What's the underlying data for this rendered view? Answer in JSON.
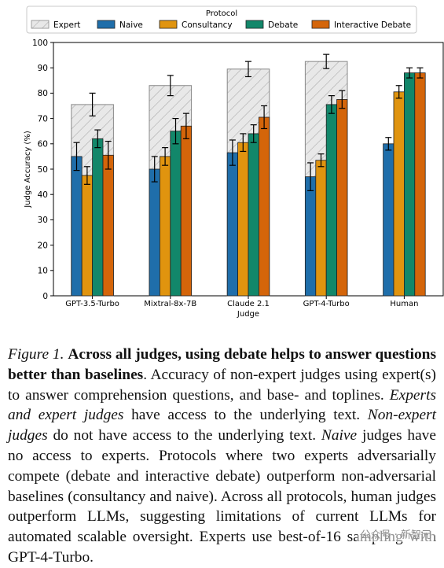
{
  "chart_data": {
    "type": "bar",
    "legend_title": "Protocol",
    "legend_position": "top",
    "ylabel": "Judge Accuracy (%)",
    "xlabel": "Judge",
    "ylim": [
      0,
      100
    ],
    "yticks": [
      0,
      10,
      20,
      30,
      40,
      50,
      60,
      70,
      80,
      90,
      100
    ],
    "grid": false,
    "categories": [
      "GPT-3.5-Turbo",
      "Mixtral-8x-7B",
      "Claude 2.1",
      "GPT-4-Turbo",
      "Human"
    ],
    "expert": {
      "name": "Expert",
      "values": [
        75.5,
        83.0,
        89.5,
        92.5,
        null
      ],
      "errors": [
        4.5,
        4.0,
        3.0,
        2.8,
        null
      ],
      "color": "#e8e8e8",
      "hatch": "diagonal"
    },
    "series": [
      {
        "name": "Naive",
        "color": "#1f6eaa",
        "values": [
          55.0,
          50.0,
          56.5,
          47.0,
          60.0
        ],
        "errors": [
          5.5,
          5.0,
          5.0,
          5.5,
          2.5
        ]
      },
      {
        "name": "Consultancy",
        "color": "#e0940f",
        "values": [
          47.5,
          55.0,
          60.5,
          53.5,
          80.5
        ],
        "errors": [
          3.5,
          3.5,
          3.5,
          2.5,
          2.5
        ]
      },
      {
        "name": "Debate",
        "color": "#12876a",
        "values": [
          62.0,
          65.0,
          64.0,
          75.5,
          88.0
        ],
        "errors": [
          3.5,
          5.0,
          3.5,
          3.5,
          2.0
        ]
      },
      {
        "name": "Interactive Debate",
        "color": "#d4650a",
        "values": [
          55.5,
          67.0,
          70.5,
          77.5,
          88.0
        ],
        "errors": [
          5.5,
          5.0,
          4.5,
          3.5,
          2.0
        ]
      }
    ]
  },
  "caption": {
    "label": "Figure 1.",
    "bold_title": "Across all judges, using debate helps to answer questions better than baselines",
    "s1": ". Accuracy of non-expert judges using expert(s) to answer comprehension questions, and base- and toplines. ",
    "it1": "Experts and expert judges",
    "s2": " have access to the underlying text. ",
    "it2": "Non-expert judges",
    "s3": " do not have access to the underlying text. ",
    "it3": "Naive",
    "s4": " judges have no access to experts. Protocols where two experts adversarially compete (debate and interactive debate) outperform non-adversarial baselines (consultancy and naive). Across all protocols, human judges outperform LLMs, suggesting limitations of current LLMs for automated scalable oversight. Experts use best-of-16 sampling with GPT-4-Turbo."
  },
  "watermark": "公众号 · 新智元"
}
